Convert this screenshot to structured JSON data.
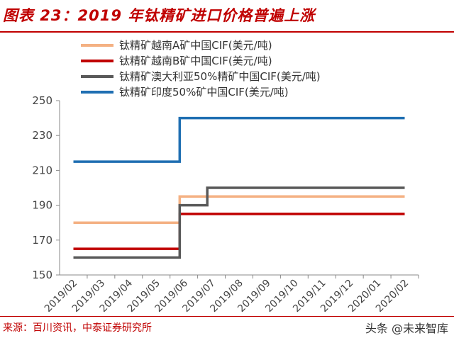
{
  "header": {
    "title": "图表 23：2019 年钛精矿进口价格普遍上涨"
  },
  "footer": {
    "source": "来源：百川资讯，中泰证券研究所",
    "watermark": "头条 @未来智库"
  },
  "chart_data": {
    "type": "line",
    "step": true,
    "x": [
      "2019/02",
      "2019/03",
      "2019/04",
      "2019/05",
      "2019/06",
      "2019/07",
      "2019/08",
      "2019/09",
      "2019/10",
      "2019/11",
      "2019/12",
      "2020/01",
      "2020/02"
    ],
    "ylim": [
      150,
      250
    ],
    "yticks": [
      150,
      170,
      190,
      210,
      230,
      250
    ],
    "grid": false,
    "legend_position": "top-left",
    "series": [
      {
        "name": "钛精矿越南A矿中国CIF(美元/吨)",
        "color": "#f4b183",
        "points": [
          [
            "2019/02",
            180
          ],
          [
            "2019/05 late",
            180
          ],
          [
            "2019/05 late",
            195
          ],
          [
            "2020/02",
            195
          ]
        ]
      },
      {
        "name": "钛精矿越南B矿中国CIF(美元/吨)",
        "color": "#c00000",
        "points": [
          [
            "2019/02",
            165
          ],
          [
            "2019/05 late",
            165
          ],
          [
            "2019/05 late",
            185
          ],
          [
            "2020/02",
            185
          ]
        ]
      },
      {
        "name": "钛精矿澳大利亚50%精矿中国CIF(美元/吨)",
        "color": "#595959",
        "points": [
          [
            "2019/02",
            160
          ],
          [
            "2019/05 late",
            160
          ],
          [
            "2019/05 late",
            190
          ],
          [
            "2019/06 late",
            190
          ],
          [
            "2019/06 late",
            200
          ],
          [
            "2020/02",
            200
          ]
        ]
      },
      {
        "name": "钛精矿印度50%矿中国CIF(美元/吨)",
        "color": "#1f6fb2",
        "points": [
          [
            "2019/02",
            215
          ],
          [
            "2019/05 late",
            215
          ],
          [
            "2019/05 late",
            240
          ],
          [
            "2020/02",
            240
          ]
        ]
      }
    ]
  }
}
